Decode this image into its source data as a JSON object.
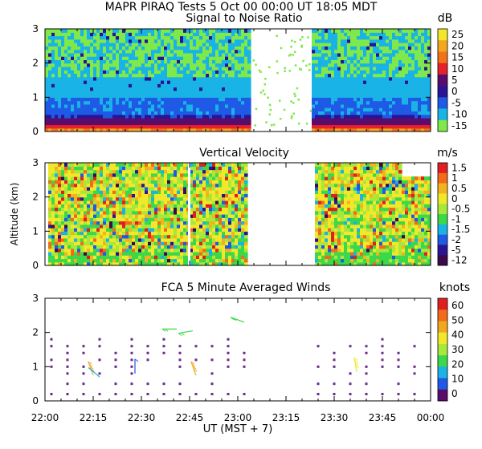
{
  "header": {
    "title": "MAPR PIRAQ Tests   5 Oct 00   00:00 UT   18:05   MDT"
  },
  "x_axis": {
    "ticks": [
      "22:00",
      "22:15",
      "22:30",
      "22:45",
      "23:00",
      "23:15",
      "23:30",
      "23:45",
      "00:00"
    ],
    "label": "UT  (MST + 7)",
    "range_minutes": [
      0,
      120
    ]
  },
  "y_axis": {
    "label": "Altitude (km)",
    "ticks": [
      "0",
      "1",
      "2",
      "3"
    ],
    "range_km": [
      0,
      3
    ]
  },
  "chart_data": [
    {
      "type": "heatmap",
      "title": "Signal to Noise Ratio",
      "unit": "dB",
      "ylabel": "Altitude (km)",
      "ylim": [
        0,
        3
      ],
      "colorbar": {
        "labels": [
          "25",
          "20",
          "15",
          "10",
          "5",
          "0",
          "-5",
          "-10",
          "-15"
        ],
        "colors": [
          "#f2e82a",
          "#f2a81e",
          "#f27218",
          "#e8202a",
          "#5a0c6a",
          "#2a1496",
          "#1e5ae6",
          "#19b3e6",
          "#7fe84a"
        ]
      },
      "data_gaps_minutes": [
        [
          64,
          83
        ]
      ],
      "note": "Strong returns (>10 dB) below 0.4 km; values decrease with altitude to about -10 dB near 3 km."
    },
    {
      "type": "heatmap",
      "title": "Vertical Velocity",
      "unit": "m/s",
      "ylabel": "Altitude (km)",
      "ylim": [
        0,
        3
      ],
      "colorbar": {
        "labels": [
          "1.5",
          "1",
          "0.5",
          "0",
          "-0.5",
          "-1",
          "-1.5",
          "-2",
          "-5",
          "-12"
        ],
        "colors": [
          "#e02020",
          "#f26a1a",
          "#f2b41e",
          "#f2e82a",
          "#a8e83a",
          "#3cd84a",
          "#19b3e6",
          "#1e5ae6",
          "#2a1496",
          "#3a0a4a"
        ]
      },
      "data_gaps_minutes": [
        [
          63,
          84
        ]
      ],
      "note": "Mostly between -0.5 and 0.5 m/s with scattered downdrafts below -2 m/s."
    },
    {
      "type": "scatter",
      "title": "FCA 5 Minute Averaged Winds",
      "unit": "knots",
      "ylabel": "Altitude (km)",
      "ylim": [
        0,
        3
      ],
      "colorbar": {
        "labels": [
          "60",
          "50",
          "40",
          "30",
          "20",
          "10",
          "0"
        ],
        "colors": [
          "#e02020",
          "#f26a1a",
          "#f2a81e",
          "#f2e82a",
          "#a8e83a",
          "#3cd84a",
          "#19b3e6",
          "#1e5ae6",
          "#5a0c6a"
        ]
      },
      "columns_minutes": [
        2,
        7,
        12,
        17,
        22,
        27,
        32,
        37,
        42,
        47,
        52,
        57,
        62,
        85,
        90,
        95,
        100,
        105,
        110,
        115
      ],
      "wind_barbs": [
        {
          "t": 15,
          "alt": 0.75,
          "speed_kt": 45,
          "dir_deg": 200
        },
        {
          "t": 17,
          "alt": 0.7,
          "speed_kt": 15,
          "dir_deg": 230
        },
        {
          "t": 28,
          "alt": 0.8,
          "speed_kt": 5,
          "dir_deg": 180
        },
        {
          "t": 47,
          "alt": 0.75,
          "speed_kt": 45,
          "dir_deg": 200
        },
        {
          "t": 41,
          "alt": 2.1,
          "speed_kt": 20,
          "dir_deg": 270
        },
        {
          "t": 46,
          "alt": 2.05,
          "speed_kt": 20,
          "dir_deg": 280
        },
        {
          "t": 62,
          "alt": 2.3,
          "speed_kt": 20,
          "dir_deg": 250
        },
        {
          "t": 97,
          "alt": 0.85,
          "speed_kt": 40,
          "dir_deg": 190
        }
      ]
    }
  ]
}
